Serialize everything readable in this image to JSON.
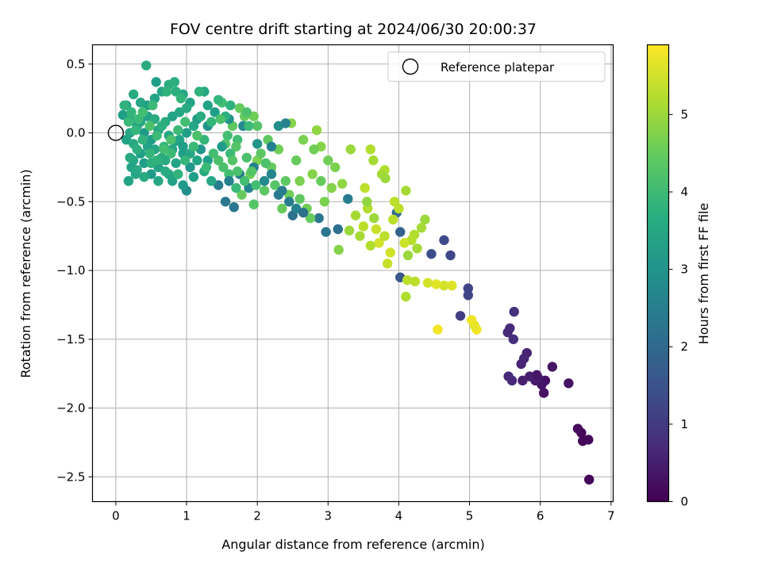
{
  "chart_data": {
    "type": "scatter",
    "title": "FOV centre drift starting at 2024/06/30 20:00:37",
    "xlabel": "Angular distance from reference (arcmin)",
    "ylabel": "Rotation from reference (arcmin)",
    "xlim": [
      -0.33,
      7.03
    ],
    "ylim": [
      -2.68,
      0.64
    ],
    "xticks": [
      0,
      1,
      2,
      3,
      4,
      5,
      6,
      7
    ],
    "yticks": [
      0.5,
      0.0,
      -0.5,
      -1.0,
      -1.5,
      -2.0,
      -2.5
    ],
    "xtick_labels": [
      "0",
      "1",
      "2",
      "3",
      "4",
      "5",
      "6",
      "7"
    ],
    "ytick_labels": [
      "0.5",
      "0.0",
      "−0.5",
      "−1.0",
      "−1.5",
      "−2.0",
      "−2.5"
    ],
    "grid": true,
    "colormap": "viridis",
    "colorbar": {
      "label": "Hours from first FF file",
      "range": [
        0,
        5.9
      ],
      "ticks": [
        0,
        1,
        2,
        3,
        4,
        5
      ],
      "tick_labels": [
        "0",
        "1",
        "2",
        "3",
        "4",
        "5"
      ]
    },
    "legend": {
      "position": "top-right",
      "entries": [
        "Reference platepar"
      ]
    },
    "reference_point": {
      "x": 0.0,
      "y": 0.0
    },
    "points": [
      [
        6.69,
        -2.52,
        0.05
      ],
      [
        6.68,
        -2.23,
        0.12
      ],
      [
        6.6,
        -2.24,
        0.1
      ],
      [
        6.58,
        -2.18,
        0.08
      ],
      [
        6.53,
        -2.15,
        0.15
      ],
      [
        6.4,
        -1.82,
        0.3
      ],
      [
        6.17,
        -1.7,
        0.35
      ],
      [
        6.07,
        -1.8,
        0.25
      ],
      [
        6.05,
        -1.89,
        0.28
      ],
      [
        6.02,
        -1.83,
        0.32
      ],
      [
        5.97,
        -1.78,
        0.4
      ],
      [
        5.93,
        -1.8,
        0.45
      ],
      [
        5.85,
        -1.77,
        0.5
      ],
      [
        5.81,
        -1.6,
        0.55
      ],
      [
        5.75,
        -1.8,
        0.5
      ],
      [
        5.73,
        -1.68,
        0.6
      ],
      [
        5.6,
        -1.8,
        0.65
      ],
      [
        5.55,
        -1.77,
        0.7
      ],
      [
        5.57,
        -1.42,
        0.75
      ],
      [
        5.54,
        -1.45,
        0.7
      ],
      [
        5.62,
        -1.5,
        0.8
      ],
      [
        5.63,
        -1.3,
        0.85
      ],
      [
        5.77,
        -1.64,
        0.6
      ],
      [
        5.95,
        -1.76,
        0.35
      ],
      [
        4.87,
        -1.33,
        1.1
      ],
      [
        4.98,
        -1.13,
        1.2
      ],
      [
        4.98,
        -1.18,
        1.25
      ],
      [
        4.73,
        -0.89,
        1.3
      ],
      [
        4.64,
        -0.78,
        1.35
      ],
      [
        4.46,
        -0.88,
        1.4
      ],
      [
        4.02,
        -1.05,
        1.6
      ],
      [
        4.02,
        -0.72,
        1.8
      ],
      [
        3.97,
        -0.58,
        2.0
      ],
      [
        3.14,
        -0.7,
        2.2
      ],
      [
        2.97,
        -0.72,
        2.3
      ],
      [
        3.28,
        -0.48,
        2.5
      ],
      [
        2.87,
        -0.62,
        2.4
      ],
      [
        2.5,
        -0.6,
        2.2
      ],
      [
        5.1,
        -1.43,
        5.8
      ],
      [
        5.07,
        -1.4,
        5.7
      ],
      [
        5.03,
        -1.36,
        5.75
      ],
      [
        4.55,
        -1.43,
        5.8
      ],
      [
        4.75,
        -1.11,
        5.6
      ],
      [
        4.64,
        -1.11,
        5.5
      ],
      [
        4.53,
        -1.1,
        5.65
      ],
      [
        4.41,
        -1.09,
        5.5
      ],
      [
        4.23,
        -1.08,
        5.3
      ],
      [
        4.12,
        -1.07,
        5.3
      ],
      [
        4.1,
        -1.19,
        5.2
      ],
      [
        4.1,
        -0.42,
        5.1
      ],
      [
        4.13,
        -0.89,
        5.0
      ],
      [
        4.26,
        -0.84,
        5.1
      ],
      [
        4.22,
        -0.74,
        5.2
      ],
      [
        4.37,
        -0.63,
        5.0
      ],
      [
        4.32,
        -0.69,
        5.1
      ],
      [
        4.18,
        -0.78,
        5.25
      ],
      [
        4.0,
        -0.55,
        5.3
      ],
      [
        3.8,
        -0.27,
        5.2
      ],
      [
        3.76,
        -0.3,
        5.1
      ],
      [
        3.81,
        -0.33,
        5.0
      ],
      [
        3.64,
        -0.2,
        5.1
      ],
      [
        3.6,
        -0.12,
        5.2
      ],
      [
        3.52,
        -0.4,
        5.3
      ],
      [
        3.32,
        -0.12,
        5.0
      ],
      [
        3.2,
        -0.37,
        4.9
      ],
      [
        3.15,
        -0.85,
        4.8
      ],
      [
        3.84,
        -0.95,
        5.4
      ],
      [
        3.88,
        -0.87,
        5.5
      ],
      [
        3.94,
        -0.5,
        5.3
      ],
      [
        3.56,
        -0.55,
        5.2
      ],
      [
        3.39,
        -0.6,
        5.1
      ],
      [
        3.5,
        -0.68,
        5.3
      ],
      [
        3.68,
        -0.7,
        5.4
      ],
      [
        3.72,
        -0.8,
        5.5
      ],
      [
        3.8,
        -0.75,
        5.3
      ],
      [
        3.6,
        -0.82,
        5.2
      ],
      [
        3.3,
        -0.71,
        5.0
      ],
      [
        3.45,
        -0.75,
        5.1
      ],
      [
        4.08,
        -0.8,
        5.45
      ],
      [
        3.92,
        -0.63,
        5.3
      ],
      [
        3.65,
        -0.62,
        5.0
      ],
      [
        3.55,
        -0.5,
        4.9
      ],
      [
        2.48,
        0.07,
        4.8
      ],
      [
        2.84,
        0.02,
        4.9
      ],
      [
        2.65,
        -0.05,
        4.7
      ],
      [
        2.9,
        -0.1,
        4.8
      ],
      [
        3.0,
        -0.2,
        4.6
      ],
      [
        2.78,
        -0.3,
        4.8
      ],
      [
        2.6,
        -0.35,
        4.7
      ],
      [
        2.45,
        -0.45,
        4.6
      ],
      [
        2.35,
        -0.55,
        4.5
      ],
      [
        2.1,
        -0.42,
        4.4
      ],
      [
        1.95,
        -0.52,
        4.3
      ],
      [
        1.78,
        -0.45,
        4.5
      ],
      [
        1.9,
        -0.3,
        4.6
      ],
      [
        2.0,
        -0.2,
        4.7
      ],
      [
        2.2,
        -0.25,
        4.5
      ],
      [
        2.3,
        -0.12,
        4.6
      ],
      [
        2.15,
        -0.05,
        4.4
      ],
      [
        2.0,
        0.05,
        4.3
      ],
      [
        1.75,
        0.18,
        4.5
      ],
      [
        1.65,
        0.05,
        4.4
      ],
      [
        1.55,
        -0.08,
        4.3
      ],
      [
        1.45,
        -0.2,
        4.2
      ],
      [
        1.6,
        -0.3,
        4.1
      ],
      [
        1.7,
        -0.4,
        4.0
      ],
      [
        1.85,
        -0.18,
        4.2
      ],
      [
        1.95,
        0.12,
        4.6
      ],
      [
        1.82,
        0.12,
        4.5
      ],
      [
        1.5,
        0.22,
        4.1
      ],
      [
        2.7,
        -0.55,
        4.6
      ],
      [
        2.95,
        -0.5,
        4.7
      ],
      [
        3.05,
        -0.4,
        4.8
      ],
      [
        2.55,
        -0.2,
        4.5
      ],
      [
        2.4,
        -0.35,
        4.4
      ],
      [
        2.25,
        -0.38,
        4.3
      ],
      [
        2.8,
        -0.12,
        4.6
      ],
      [
        3.1,
        -0.25,
        4.7
      ],
      [
        2.9,
        -0.35,
        4.5
      ],
      [
        2.6,
        -0.48,
        4.4
      ],
      [
        2.75,
        -0.62,
        4.5
      ],
      [
        1.75,
        -0.3,
        2.5
      ],
      [
        1.6,
        -0.35,
        2.6
      ],
      [
        1.55,
        -0.5,
        2.4
      ],
      [
        1.67,
        -0.54,
        2.3
      ],
      [
        1.45,
        -0.38,
        2.5
      ],
      [
        2.2,
        -0.1,
        2.6
      ],
      [
        2.3,
        -0.45,
        2.4
      ],
      [
        2.45,
        -0.5,
        2.5
      ],
      [
        2.55,
        -0.55,
        2.6
      ],
      [
        2.65,
        -0.58,
        2.2
      ],
      [
        2.2,
        -0.3,
        2.7
      ],
      [
        2.35,
        -0.42,
        2.5
      ],
      [
        2.1,
        -0.35,
        2.8
      ],
      [
        1.95,
        -0.25,
        2.6
      ],
      [
        1.88,
        -0.4,
        2.7
      ],
      [
        2.3,
        0.05,
        2.9
      ],
      [
        2.4,
        0.07,
        2.6
      ],
      [
        1.6,
        0.1,
        3.0
      ],
      [
        1.8,
        0.05,
        2.8
      ],
      [
        2.0,
        -0.08,
        3.1
      ],
      [
        1.5,
        -0.1,
        3.2
      ],
      [
        1.3,
        -0.2,
        3.3
      ],
      [
        1.2,
        -0.12,
        3.1
      ],
      [
        1.3,
        0.05,
        3.0
      ],
      [
        1.15,
        0.1,
        3.2
      ],
      [
        1.0,
        -0.42,
        2.9
      ],
      [
        1.05,
        -0.25,
        3.1
      ],
      [
        0.95,
        -0.15,
        3.3
      ],
      [
        0.85,
        -0.22,
        3.4
      ],
      [
        0.75,
        -0.3,
        3.5
      ],
      [
        0.65,
        -0.18,
        3.6
      ],
      [
        0.55,
        -0.12,
        3.5
      ],
      [
        0.45,
        -0.1,
        3.4
      ],
      [
        0.35,
        -0.15,
        3.3
      ],
      [
        0.25,
        -0.2,
        3.5
      ],
      [
        0.22,
        -0.25,
        3.4
      ],
      [
        0.18,
        -0.35,
        3.5
      ],
      [
        0.3,
        -0.27,
        3.6
      ],
      [
        0.4,
        -0.22,
        3.3
      ],
      [
        0.5,
        -0.3,
        3.2
      ],
      [
        0.6,
        -0.25,
        3.4
      ],
      [
        0.7,
        -0.2,
        3.6
      ],
      [
        0.8,
        -0.12,
        3.5
      ],
      [
        0.9,
        -0.05,
        3.4
      ],
      [
        1.0,
        0.0,
        3.3
      ],
      [
        1.1,
        0.05,
        3.5
      ],
      [
        1.2,
        0.12,
        3.6
      ],
      [
        1.3,
        0.2,
        3.4
      ],
      [
        1.4,
        0.15,
        3.3
      ],
      [
        1.25,
        0.3,
        3.5
      ],
      [
        1.05,
        0.22,
        3.4
      ],
      [
        0.95,
        0.28,
        3.5
      ],
      [
        0.85,
        0.3,
        3.7
      ],
      [
        0.75,
        0.35,
        3.6
      ],
      [
        0.65,
        0.3,
        3.5
      ],
      [
        0.55,
        0.25,
        3.4
      ],
      [
        0.45,
        0.2,
        3.3
      ],
      [
        0.35,
        0.22,
        3.5
      ],
      [
        0.25,
        0.28,
        3.6
      ],
      [
        0.15,
        0.2,
        3.4
      ],
      [
        0.1,
        0.13,
        3.3
      ],
      [
        0.2,
        0.1,
        3.5
      ],
      [
        0.3,
        0.05,
        3.4
      ],
      [
        0.4,
        0.0,
        3.2
      ],
      [
        0.5,
        -0.05,
        3.3
      ],
      [
        0.6,
        0.02,
        3.5
      ],
      [
        0.7,
        0.08,
        3.6
      ],
      [
        0.8,
        0.12,
        3.4
      ],
      [
        0.9,
        0.15,
        3.5
      ],
      [
        1.0,
        0.18,
        3.6
      ],
      [
        0.2,
        0.0,
        3.5
      ],
      [
        0.15,
        -0.05,
        3.4
      ],
      [
        0.25,
        -0.08,
        3.6
      ],
      [
        0.35,
        0.08,
        3.5
      ],
      [
        0.45,
        0.12,
        3.4
      ],
      [
        0.55,
        0.1,
        3.6
      ],
      [
        0.65,
        0.05,
        3.7
      ],
      [
        0.75,
        -0.02,
        3.5
      ],
      [
        0.85,
        -0.06,
        3.4
      ],
      [
        0.95,
        -0.1,
        3.3
      ],
      [
        1.05,
        -0.15,
        3.5
      ],
      [
        1.15,
        -0.2,
        3.4
      ],
      [
        1.25,
        -0.28,
        3.6
      ],
      [
        1.35,
        -0.35,
        3.5
      ],
      [
        1.1,
        -0.32,
        3.3
      ],
      [
        0.95,
        -0.38,
        3.2
      ],
      [
        0.8,
        -0.35,
        3.4
      ],
      [
        0.7,
        -0.28,
        3.6
      ],
      [
        0.6,
        -0.35,
        3.5
      ],
      [
        0.5,
        -0.22,
        3.7
      ],
      [
        0.4,
        -0.32,
        3.6
      ],
      [
        0.3,
        -0.12,
        3.7
      ],
      [
        0.2,
        -0.18,
        3.6
      ],
      [
        0.18,
        -0.35,
        3.4
      ],
      [
        0.28,
        -0.3,
        3.5
      ],
      [
        0.43,
        0.49,
        3.6
      ],
      [
        0.57,
        0.37,
        3.3
      ],
      [
        0.83,
        0.37,
        3.7
      ],
      [
        0.72,
        0.3,
        3.8
      ],
      [
        0.92,
        0.25,
        3.9
      ],
      [
        1.18,
        0.3,
        3.8
      ],
      [
        1.45,
        0.24,
        3.9
      ],
      [
        1.62,
        0.2,
        3.8
      ],
      [
        1.55,
        0.12,
        3.7
      ],
      [
        1.35,
        0.08,
        3.9
      ],
      [
        1.85,
        0.15,
        4.2
      ],
      [
        1.88,
        0.05,
        4.0
      ],
      [
        1.72,
        -0.05,
        4.1
      ],
      [
        1.62,
        -0.15,
        4.0
      ],
      [
        1.52,
        -0.25,
        4.2
      ],
      [
        1.38,
        -0.15,
        4.1
      ],
      [
        1.25,
        -0.05,
        3.9
      ],
      [
        1.1,
        -0.1,
        4.0
      ],
      [
        0.98,
        -0.2,
        3.9
      ],
      [
        0.88,
        -0.3,
        3.8
      ],
      [
        0.78,
        -0.15,
        4.0
      ],
      [
        0.68,
        -0.1,
        3.9
      ],
      [
        0.58,
        -0.2,
        3.8
      ],
      [
        0.48,
        -0.15,
        3.9
      ],
      [
        0.38,
        -0.05,
        3.8
      ],
      [
        0.28,
        0.02,
        3.9
      ],
      [
        0.18,
        0.08,
        4.0
      ],
      [
        0.12,
        0.2,
        3.8
      ],
      [
        0.22,
        0.15,
        3.9
      ],
      [
        0.32,
        0.1,
        4.0
      ],
      [
        1.65,
        -0.2,
        4.3
      ],
      [
        1.72,
        -0.28,
        4.2
      ],
      [
        1.82,
        -0.35,
        4.1
      ],
      [
        1.92,
        -0.28,
        4.3
      ],
      [
        2.05,
        -0.15,
        4.4
      ],
      [
        2.12,
        -0.22,
        4.2
      ],
      [
        1.98,
        -0.38,
        4.1
      ],
      [
        1.7,
        -0.1,
        4.3
      ],
      [
        1.48,
        0.1,
        4.2
      ],
      [
        1.58,
        -0.02,
        4.1
      ],
      [
        1.28,
        -0.25,
        4.0
      ],
      [
        1.15,
        -0.02,
        4.2
      ],
      [
        0.98,
        0.08,
        4.1
      ],
      [
        0.88,
        0.02,
        4.0
      ],
      [
        0.78,
        -0.05,
        4.2
      ],
      [
        0.68,
        -0.12,
        4.1
      ],
      [
        0.58,
        -0.02,
        4.0
      ],
      [
        0.48,
        0.05,
        4.2
      ],
      [
        0.38,
        0.15,
        4.1
      ],
      [
        0.52,
        0.2,
        4.0
      ]
    ]
  }
}
